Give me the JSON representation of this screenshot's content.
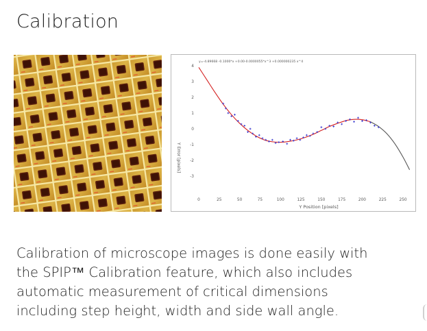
{
  "page": {
    "title": "Calibration"
  },
  "image": {
    "alt": "Microscope image of calibration grid"
  },
  "chart_data": {
    "type": "scatter",
    "title": "",
    "equation": "y=-4.89668 -0.1000*x +0.00-0.0000055*x^3 +0.000000235 x^4",
    "xlabel": "Y Position [pixels]",
    "ylabel": "Y Error [pixels]",
    "xlim": [
      0,
      260
    ],
    "ylim": [
      -4,
      4
    ],
    "x_ticks": [
      0,
      25,
      50,
      75,
      100,
      125,
      150,
      175,
      200,
      225,
      250
    ],
    "y_ticks": [
      4,
      3,
      2,
      1,
      0,
      -1,
      -2,
      -3
    ],
    "grid": false,
    "series": [
      {
        "kind": "points",
        "color": "#3a3ad0",
        "x": [
          30,
          33,
          36,
          40,
          44,
          48,
          52,
          56,
          60,
          63,
          66,
          70,
          74,
          78,
          82,
          86,
          90,
          94,
          98,
          103,
          108,
          112,
          116,
          120,
          124,
          128,
          132,
          136,
          140,
          145,
          150,
          155,
          160,
          165,
          170,
          175,
          180,
          185,
          190,
          195,
          200,
          205,
          210,
          215,
          220
        ],
        "y": [
          1.6,
          1.3,
          1.0,
          0.8,
          0.9,
          0.5,
          0.3,
          0.2,
          -0.2,
          0.0,
          -0.3,
          -0.5,
          -0.4,
          -0.6,
          -0.7,
          -0.8,
          -0.7,
          -0.9,
          -0.85,
          -0.8,
          -0.95,
          -0.7,
          -0.75,
          -0.6,
          -0.7,
          -0.55,
          -0.4,
          -0.45,
          -0.3,
          -0.2,
          0.1,
          0.0,
          0.2,
          0.15,
          0.4,
          0.3,
          0.5,
          0.6,
          0.45,
          0.7,
          0.5,
          0.55,
          0.4,
          0.2,
          0.1
        ]
      },
      {
        "kind": "fit",
        "color": "#d42020",
        "x": [
          0,
          10,
          20,
          30,
          40,
          50,
          60,
          70,
          80,
          90,
          100,
          110,
          120,
          130,
          140,
          150,
          160,
          170,
          180,
          190,
          200,
          210
        ],
        "y": [
          3.9,
          3.1,
          2.3,
          1.55,
          0.9,
          0.35,
          -0.1,
          -0.45,
          -0.7,
          -0.82,
          -0.85,
          -0.8,
          -0.7,
          -0.55,
          -0.35,
          -0.1,
          0.15,
          0.35,
          0.52,
          0.6,
          0.58,
          0.45
        ]
      },
      {
        "kind": "fit-extension",
        "color": "#555555",
        "x": [
          210,
          220,
          230,
          240,
          250,
          258
        ],
        "y": [
          0.45,
          0.15,
          -0.3,
          -0.95,
          -1.8,
          -2.6
        ]
      }
    ]
  },
  "caption": {
    "line1": "Calibration of microscope images is done easily with",
    "line2": "the SPIP™ Calibration feature, which also includes",
    "line3": "automatic measurement of critical dimensions",
    "line4": "including step height, width and side wall angle."
  }
}
